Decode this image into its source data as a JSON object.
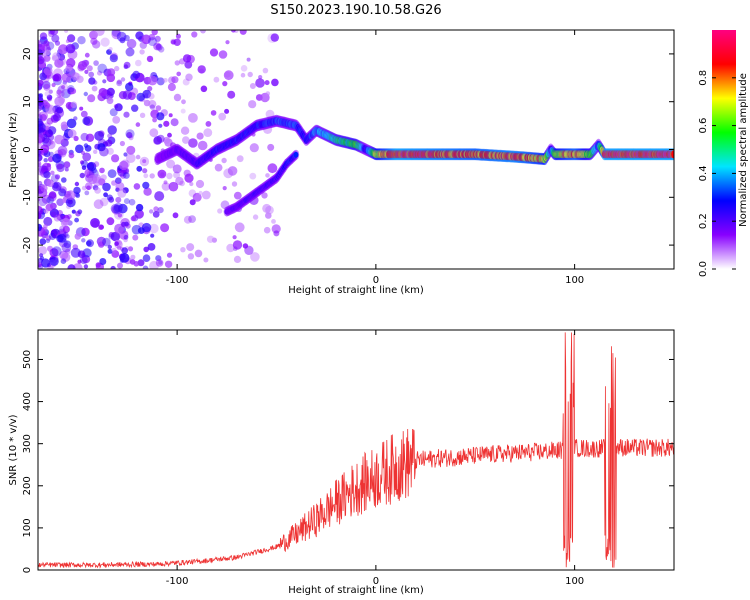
{
  "title": "S150.2023.190.10.58.G26",
  "chart_data": [
    {
      "type": "heatmap",
      "xlabel": "Height of straight line (km)",
      "ylabel": "Frequency (Hz)",
      "xlim": [
        -170,
        150
      ],
      "ylim": [
        -25,
        25
      ],
      "x_ticks": [
        -100,
        0,
        100
      ],
      "y_ticks": [
        -20,
        -10,
        0,
        10,
        20
      ],
      "colorbar": {
        "label": "Normalized spectral amplitude",
        "range": [
          0,
          1
        ],
        "ticks": [
          "0.0",
          "0.2",
          "0.4",
          "0.6",
          "0.8"
        ],
        "colors": [
          "#ffffff",
          "#8800ff",
          "#0000ff",
          "#00e5ff",
          "#00ff00",
          "#ffff00",
          "#ff0000",
          "#ff0080"
        ]
      },
      "ridge": {
        "x": [
          -110,
          -100,
          -90,
          -80,
          -70,
          -60,
          -50,
          -40,
          -35,
          -30,
          -20,
          -10,
          -5,
          0,
          10,
          30,
          50,
          70,
          85,
          88,
          90,
          100,
          108,
          112,
          115,
          120,
          150
        ],
        "freq": [
          -2,
          0,
          -3,
          0,
          2,
          5,
          6,
          5,
          2,
          4,
          2,
          1,
          0,
          -1,
          -1,
          -1,
          -1,
          -1.5,
          -2,
          0,
          -1,
          -1,
          -1,
          1,
          -1,
          -1,
          -1
        ],
        "amplitude": [
          0.15,
          0.2,
          0.25,
          0.3,
          0.3,
          0.3,
          0.35,
          0.35,
          0.3,
          0.4,
          0.5,
          0.6,
          0.3,
          0.7,
          0.95,
          0.9,
          0.85,
          0.9,
          0.75,
          0.3,
          0.7,
          0.85,
          0.6,
          0.35,
          0.95,
          0.95,
          0.95
        ]
      },
      "branch": {
        "x": [
          -75,
          -70,
          -60,
          -50,
          -45,
          -40
        ],
        "freq": [
          -13,
          -12,
          -9,
          -6,
          -3,
          -1
        ],
        "amplitude": [
          0.2,
          0.22,
          0.25,
          0.25,
          0.3,
          0.3
        ]
      }
    },
    {
      "type": "line",
      "xlabel": "Height of straight line (km)",
      "ylabel": "SNR (10 * v/v)",
      "xlim": [
        -170,
        150
      ],
      "ylim": [
        0,
        570
      ],
      "x_ticks": [
        -100,
        0,
        100
      ],
      "y_ticks": [
        0,
        100,
        200,
        300,
        400,
        500
      ],
      "color": "#ee3333",
      "series": [
        {
          "x": [
            -170,
            -140,
            -110,
            -90,
            -70,
            -50,
            -40,
            -30,
            -20,
            -10,
            0,
            10,
            20,
            30,
            40,
            60,
            80,
            95,
            100,
            110,
            120,
            130,
            150
          ],
          "values": [
            12,
            12,
            14,
            20,
            30,
            55,
            85,
            120,
            160,
            195,
            220,
            245,
            260,
            265,
            268,
            275,
            280,
            285,
            290,
            288,
            292,
            290,
            290
          ]
        }
      ],
      "spikes": [
        {
          "x": 97,
          "min": 5,
          "max": 570
        },
        {
          "x": 118,
          "min": 5,
          "max": 540
        }
      ]
    }
  ]
}
